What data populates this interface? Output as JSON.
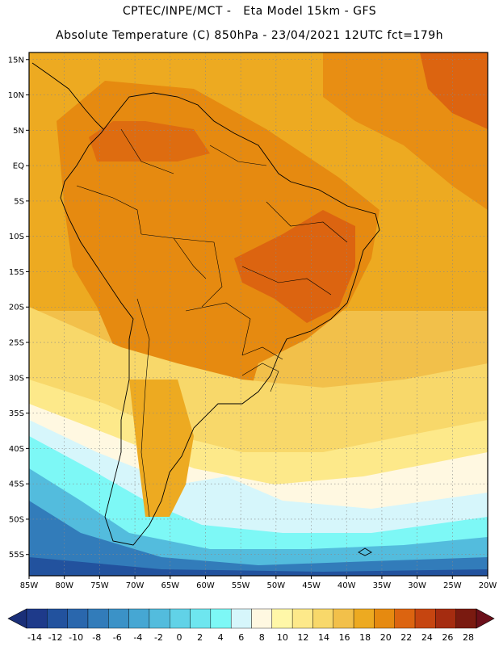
{
  "header": {
    "line1": "CPTEC/INPE/MCT -   Eta Model 15km - GFS",
    "line2": "Absolute Temperature (C) 850hPa - 23/04/2021 12UTC fct=179h"
  },
  "map": {
    "lat_ticks": [
      "15N",
      "10N",
      "5N",
      "EQ",
      "5S",
      "10S",
      "15S",
      "20S",
      "25S",
      "30S",
      "35S",
      "40S",
      "45S",
      "50S",
      "55S"
    ],
    "lon_ticks": [
      "85W",
      "80W",
      "75W",
      "70W",
      "65W",
      "60W",
      "55W",
      "50W",
      "45W",
      "40W",
      "35W",
      "30W",
      "25W",
      "20W"
    ],
    "lat_range": [
      -58,
      16
    ],
    "lon_range": [
      -85,
      -20
    ],
    "gridlines": true,
    "gridline_style": "dotted"
  },
  "colorbar": {
    "labels": [
      "-14",
      "-12",
      "-10",
      "-8",
      "-6",
      "-4",
      "-2",
      "0",
      "2",
      "4",
      "6",
      "8",
      "10",
      "12",
      "14",
      "16",
      "18",
      "20",
      "22",
      "24",
      "26",
      "28"
    ],
    "colors": [
      "#1e3a8a",
      "#22529e",
      "#2a67ad",
      "#327cba",
      "#3b92c7",
      "#46a7d3",
      "#53bcdd",
      "#61d2e7",
      "#6ee6ef",
      "#7df8f6",
      "#d6f6fb",
      "#fff8e1",
      "#fff7a8",
      "#fde98a",
      "#f8d86a",
      "#f2c04a",
      "#edaa21",
      "#e68a10",
      "#dc6410",
      "#c64510",
      "#a52c10",
      "#7a1a10"
    ]
  }
}
